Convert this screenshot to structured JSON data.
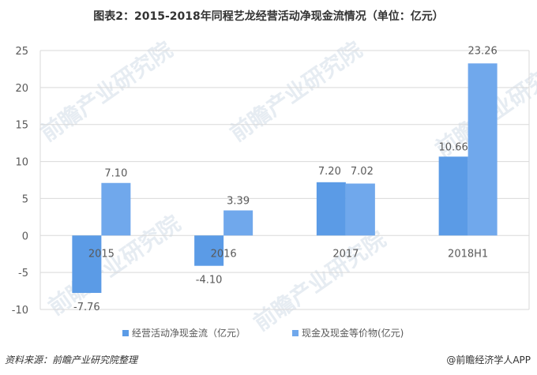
{
  "title": "图表2：2015-2018年同程艺龙经营活动净现金流情况（单位：亿元）",
  "legend": {
    "series_a": "经营活动净现金流（亿元）",
    "series_b": "现金及现金等价物(亿元)"
  },
  "footer": {
    "source": "资料来源：前瞻产业研究院整理",
    "credit": "@前瞻经济学人APP"
  },
  "watermark": "前瞻产业研究院",
  "colors": {
    "series_a": "#5b9be6",
    "series_b": "#70a8ec",
    "grid": "#d9d9d9"
  },
  "y_ticks": [
    "25",
    "20",
    "15",
    "10",
    "5",
    "0",
    "-5",
    "-10"
  ],
  "x_labels": [
    "2015",
    "2016",
    "2017",
    "2018H1"
  ],
  "value_labels": {
    "series_a": [
      "-7.76",
      "-4.10",
      "7.20",
      "10.66"
    ],
    "series_b": [
      "7.10",
      "3.39",
      "7.02",
      "23.26"
    ]
  },
  "chart_data": {
    "type": "bar",
    "title": "图表2：2015-2018年同程艺龙经营活动净现金流情况（单位：亿元）",
    "categories": [
      "2015",
      "2016",
      "2017",
      "2018H1"
    ],
    "series": [
      {
        "name": "经营活动净现金流（亿元）",
        "values": [
          -7.76,
          -4.1,
          7.2,
          10.66
        ],
        "color": "#5b9be6"
      },
      {
        "name": "现金及现金等价物(亿元)",
        "values": [
          7.1,
          3.39,
          7.02,
          23.26
        ],
        "color": "#70a8ec"
      }
    ],
    "xlabel": "",
    "ylabel": "",
    "ylim": [
      -10,
      25
    ],
    "yticks": [
      -10,
      -5,
      0,
      5,
      10,
      15,
      20,
      25
    ],
    "grid": true,
    "legend_position": "bottom",
    "data_labels": true
  }
}
